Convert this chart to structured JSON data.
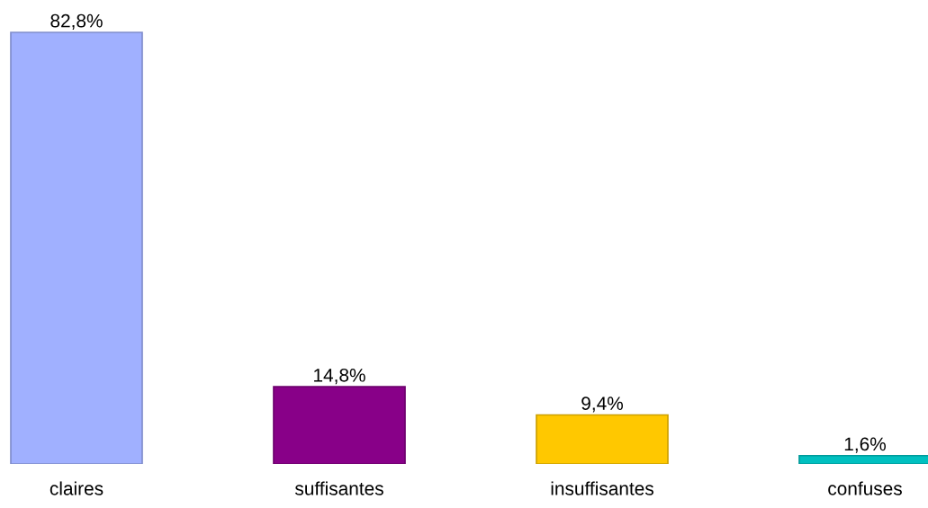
{
  "chart_data": {
    "type": "bar",
    "categories": [
      "claires",
      "suffisantes",
      "insuffisantes",
      "confuses"
    ],
    "values": [
      82.8,
      14.8,
      9.4,
      1.6
    ],
    "value_labels": [
      "82,8%",
      "14,8%",
      "9,4%",
      "1,6%"
    ],
    "colors": [
      "#a0b0ff",
      "#880088",
      "#ffc800",
      "#00c0c0"
    ],
    "grid": false,
    "legend": false
  }
}
